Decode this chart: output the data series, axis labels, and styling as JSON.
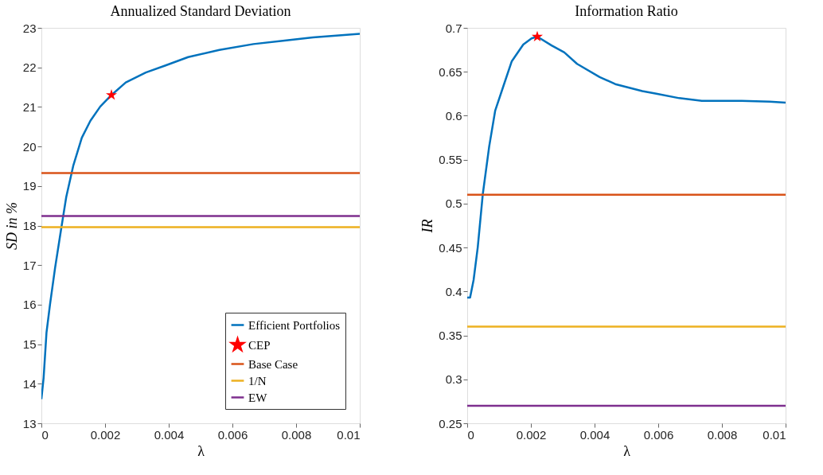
{
  "chart_data": [
    {
      "type": "line",
      "title": "Annualized Standard Deviation",
      "xlabel": "λ",
      "ylabel": "SD in %",
      "xlim": [
        0,
        0.01
      ],
      "xticks": [
        0,
        0.002,
        0.004,
        0.006,
        0.008,
        0.01
      ],
      "ylim": [
        13,
        23
      ],
      "yticks": [
        13,
        14,
        15,
        16,
        17,
        18,
        19,
        20,
        21,
        22,
        23
      ],
      "grid": false,
      "legend": "bottom right",
      "series": [
        {
          "name": "Efficient Portfolios",
          "color": "#0072bd",
          "x": [
            0,
            7e-05,
            0.00016,
            0.00027,
            0.00043,
            0.00061,
            0.00078,
            0.001,
            0.00127,
            0.00154,
            0.00185,
            0.0022,
            0.00265,
            0.00328,
            0.0039,
            0.00461,
            0.00559,
            0.00666,
            0.00764,
            0.00853,
            0.01
          ],
          "values": [
            13.61,
            14.15,
            15.29,
            16.0,
            16.93,
            17.86,
            18.72,
            19.51,
            20.22,
            20.65,
            21.01,
            21.3,
            21.62,
            21.87,
            22.05,
            22.26,
            22.44,
            22.59,
            22.68,
            22.76,
            22.85
          ]
        },
        {
          "name": "CEP",
          "type": "scatter",
          "marker": "star",
          "color": "#ff0000",
          "x": [
            0.0022
          ],
          "values": [
            21.3
          ]
        },
        {
          "name": "Base Case",
          "color": "#d95319",
          "x": [
            0,
            0.01
          ],
          "values": [
            19.33,
            19.33
          ]
        },
        {
          "name": "1/N",
          "color": "#edb120",
          "x": [
            0,
            0.01
          ],
          "values": [
            17.96,
            17.96
          ]
        },
        {
          "name": "EW",
          "color": "#7e2f8e",
          "x": [
            0,
            0.01
          ],
          "values": [
            18.24,
            18.24
          ]
        }
      ]
    },
    {
      "type": "line",
      "title": "Information Ratio",
      "xlabel": "λ",
      "ylabel": "IR",
      "xlim": [
        0,
        0.01
      ],
      "xticks": [
        0,
        0.002,
        0.004,
        0.006,
        0.008,
        0.01
      ],
      "ylim": [
        0.25,
        0.7
      ],
      "yticks": [
        0.25,
        0.3,
        0.35,
        0.4,
        0.45,
        0.5,
        0.55,
        0.6,
        0.65,
        0.7
      ],
      "grid": false,
      "legend": false,
      "series": [
        {
          "color": "#0072bd",
          "x": [
            0,
            9e-05,
            0.0002,
            0.00033,
            0.00049,
            0.00069,
            0.00088,
            0.00113,
            0.0014,
            0.00176,
            0.00202,
            0.0022,
            0.00265,
            0.00305,
            0.00345,
            0.00416,
            0.00465,
            0.0055,
            0.00594,
            0.00666,
            0.00737,
            0.00862,
            0.0095,
            0.01
          ],
          "values": [
            0.393,
            0.393,
            0.413,
            0.45,
            0.511,
            0.565,
            0.606,
            0.633,
            0.662,
            0.681,
            0.688,
            0.69,
            0.68,
            0.672,
            0.659,
            0.644,
            0.636,
            0.628,
            0.625,
            0.62,
            0.617,
            0.617,
            0.616,
            0.615
          ]
        },
        {
          "type": "scatter",
          "marker": "star",
          "color": "#ff0000",
          "x": [
            0.0022
          ],
          "values": [
            0.69
          ]
        },
        {
          "color": "#d95319",
          "x": [
            0,
            0.01
          ],
          "values": [
            0.51,
            0.51
          ]
        },
        {
          "color": "#edb120",
          "x": [
            0,
            0.01
          ],
          "values": [
            0.36,
            0.36
          ]
        },
        {
          "color": "#7e2f8e",
          "x": [
            0,
            0.01
          ],
          "values": [
            0.27,
            0.27
          ]
        }
      ]
    }
  ]
}
